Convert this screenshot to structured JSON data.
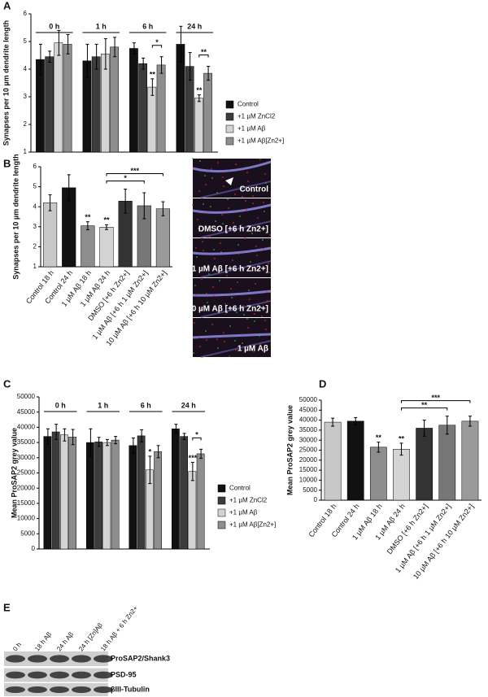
{
  "panel_labels": [
    "A",
    "B",
    "C",
    "D",
    "E"
  ],
  "chart_data": [
    {
      "type": "bar",
      "y_label": "Synapses per 10 µm dendrite length",
      "categories": [
        "0 h",
        "1 h",
        "6 h",
        "24 h"
      ],
      "ylim": [
        1,
        6
      ],
      "yticks": [
        1,
        2,
        3,
        4,
        5,
        6
      ],
      "series": [
        {
          "name": "Control",
          "color": "#111111",
          "values": [
            4.35,
            4.3,
            4.75,
            4.9
          ],
          "errors": [
            0.55,
            0.6,
            0.2,
            0.65
          ]
        },
        {
          "name": "+1 µM ZnCl2",
          "color": "#3c3c3c",
          "values": [
            4.45,
            4.45,
            4.2,
            4.1
          ],
          "errors": [
            0.2,
            0.45,
            0.2,
            0.5
          ]
        },
        {
          "name": "+1 µM Aβ",
          "color": "#d4d4d4",
          "values": [
            4.95,
            4.55,
            3.35,
            2.95
          ],
          "errors": [
            0.45,
            0.55,
            0.3,
            0.12
          ],
          "significance": [
            null,
            null,
            "**",
            "**"
          ]
        },
        {
          "name": "+1 µM Aβ[Zn2+]",
          "color": "#8e8e8e",
          "values": [
            4.9,
            4.8,
            4.15,
            3.85
          ],
          "errors": [
            0.35,
            0.35,
            0.3,
            0.25
          ],
          "bracket_labels": [
            null,
            null,
            "*",
            "**"
          ]
        }
      ]
    },
    {
      "type": "bar",
      "y_label": "Synapses per 10 µm dendrite length",
      "categories": [
        "Control 18 h",
        "Control 24 h",
        "1 µM Aβ 18 h",
        "1 µM Aβ 24 h",
        "DMSO [+6 h Zn2+]",
        "1 µM Aβ [+6 h 1 µM Zn2+]",
        "10 µM Aβ [+6 h 10 µM Zn2+]"
      ],
      "values": [
        4.2,
        4.95,
        3.05,
        2.98,
        4.28,
        4.05,
        3.9
      ],
      "errors": [
        0.4,
        0.65,
        0.2,
        0.12,
        0.6,
        0.65,
        0.35
      ],
      "colors": [
        "#c8c8c8",
        "#111111",
        "#8e8e8e",
        "#d4d4d4",
        "#333333",
        "#777777",
        "#9a9a9a"
      ],
      "significance": [
        null,
        null,
        "**",
        "**",
        null,
        null,
        null
      ],
      "brackets": [
        {
          "from": "1 µM Aβ 24 h",
          "to": "1 µM Aβ [+6 h 1 µM Zn2+]",
          "label": "*"
        },
        {
          "from": "1 µM Aβ 24 h",
          "to": "10 µM Aβ [+6 h 10 µM Zn2+]",
          "label": "***"
        }
      ],
      "ylim": [
        1,
        6
      ],
      "yticks": [
        1,
        2,
        3,
        4,
        5,
        6
      ]
    },
    {
      "type": "bar",
      "y_label": "Mean ProSAP2 grey value",
      "categories": [
        "0 h",
        "1 h",
        "6 h",
        "24 h"
      ],
      "ylim": [
        0,
        50000
      ],
      "yticks": [
        0,
        5000,
        10000,
        15000,
        20000,
        25000,
        30000,
        35000,
        40000,
        45000,
        50000
      ],
      "series": [
        {
          "name": "Control",
          "color": "#111111",
          "values": [
            37000,
            35000,
            34000,
            39500
          ],
          "errors": [
            2500,
            4500,
            2500,
            1500
          ]
        },
        {
          "name": "+1 µM ZnCl2",
          "color": "#3c3c3c",
          "values": [
            38500,
            35200,
            37200,
            37000
          ],
          "errors": [
            2500,
            1500,
            2000,
            1000
          ]
        },
        {
          "name": "+1 µM Aβ",
          "color": "#d4d4d4",
          "values": [
            37500,
            35000,
            26000,
            25500
          ],
          "errors": [
            2000,
            1000,
            4500,
            3000
          ],
          "significance": [
            null,
            null,
            "*",
            "***"
          ]
        },
        {
          "name": "+1 µM Aβ[Zn2+]",
          "color": "#8e8e8e",
          "values": [
            36800,
            35800,
            32000,
            31300
          ],
          "errors": [
            2500,
            1200,
            2000,
            1500
          ],
          "bracket_labels": [
            null,
            null,
            null,
            "*"
          ]
        }
      ]
    },
    {
      "type": "bar",
      "y_label": "Mean ProSAP2 grey value",
      "categories": [
        "Control 18 h",
        "Control 24 h",
        "1 µM Aβ 18 h",
        "1 µM Aβ 24 h",
        "DMSO [+6 h Zn2+]",
        "1 µM Aβ [+6 h 1 µM Zn2+]",
        "10 µM Aβ [+6 h 10 µM Zn2+]"
      ],
      "values": [
        39000,
        39500,
        26500,
        25500,
        36000,
        37500,
        39500
      ],
      "errors": [
        2000,
        1800,
        2500,
        3000,
        4000,
        4500,
        2500
      ],
      "colors": [
        "#c8c8c8",
        "#111111",
        "#8e8e8e",
        "#d4d4d4",
        "#333333",
        "#777777",
        "#9a9a9a"
      ],
      "significance": [
        null,
        null,
        "**",
        "**",
        null,
        null,
        null
      ],
      "brackets": [
        {
          "from": "1 µM Aβ 24 h",
          "to": "1 µM Aβ [+6 h 1 µM Zn2+]",
          "label": "**"
        },
        {
          "from": "1 µM Aβ 24 h",
          "to": "10 µM Aβ [+6 h 10 µM Zn2+]",
          "label": "***"
        }
      ],
      "ylim": [
        0,
        50000
      ],
      "yticks": [
        0,
        5000,
        10000,
        15000,
        20000,
        25000,
        30000,
        35000,
        40000,
        45000,
        50000
      ]
    }
  ],
  "micrographs": {
    "labels": [
      "Control",
      "DMSO [+6 h Zn2+]",
      "1 µM Aβ [+6 h Zn2+]",
      "10 µM Aβ [+6 h Zn2+]",
      "1 µM Aβ"
    ]
  },
  "blot": {
    "lanes": [
      "0 h",
      "18 h Aβ",
      "24 h Aβ",
      "24 h [Zn]Aβ",
      "18 h Aβ + 6 h Zn2+"
    ],
    "bands": [
      "ProSAP2/Shank3",
      "PSD-95",
      "βIII-Tubulin"
    ]
  }
}
